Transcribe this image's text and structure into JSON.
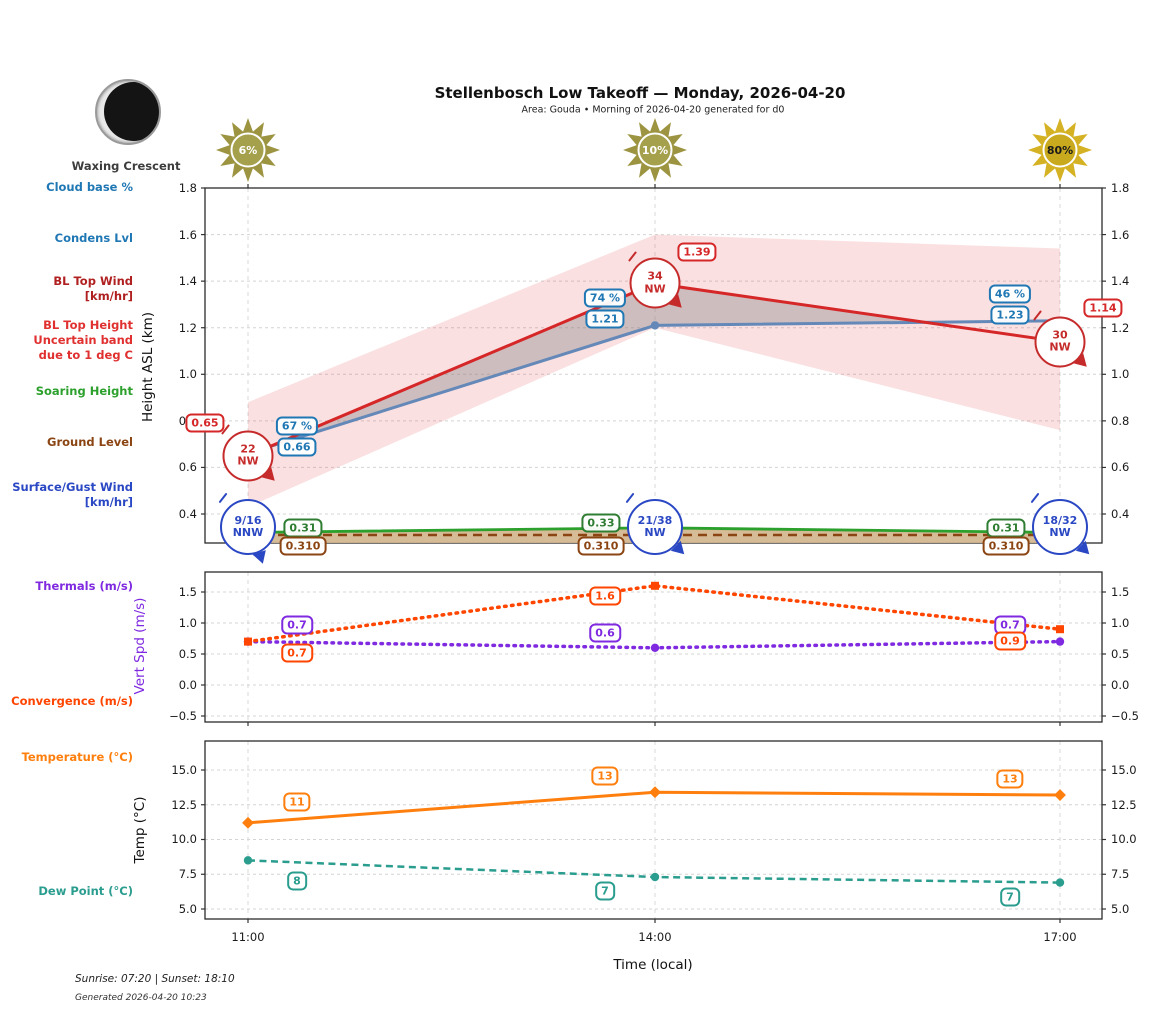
{
  "header": {
    "title": "Stellenbosch Low Takeoff — Monday, 2026-04-20",
    "subtitle": "Area: Gouda • Morning of 2026-04-20 generated for d0",
    "moon_phase": "Waxing Crescent"
  },
  "sunshine": [
    {
      "pct": "6%",
      "ray_color": "#9c9440",
      "disc_color": "#a5a04b",
      "text_color": "#ffffff"
    },
    {
      "pct": "10%",
      "ray_color": "#9c9440",
      "disc_color": "#a5a04b",
      "text_color": "#ffffff"
    },
    {
      "pct": "80%",
      "ray_color": "#d4b223",
      "disc_color": "#c9a91e",
      "text_color": "#1a1a1a"
    }
  ],
  "legends": {
    "cloud_base": "Cloud base %",
    "condens_lvl": "Condens Lvl",
    "bl_top_wind": [
      "BL Top Wind",
      "[km/hr]"
    ],
    "bl_top_height": [
      "BL Top Height",
      "Uncertain band",
      "due to 1 deg C"
    ],
    "soaring_height": "Soaring Height",
    "ground_level": "Ground Level",
    "surface_wind": [
      "Surface/Gust Wind",
      "[km/hr]"
    ],
    "thermals": "Thermals (m/s)",
    "convergence": "Convergence (m/s)",
    "temperature": "Temperature (°C)",
    "dew_point": "Dew Point (°C)"
  },
  "axes": {
    "time_label": "Time (local)"
  },
  "times": [
    "11:00",
    "14:00",
    "17:00"
  ],
  "footer": {
    "sun_times": "Sunrise: 07:20 | Sunset: 18:10",
    "generated": "Generated 2026-04-20 10:23"
  },
  "chart_data": [
    {
      "type": "line",
      "ylabel": "Height ASL (km)",
      "x": [
        "11:00",
        "14:00",
        "17:00"
      ],
      "ylim": [
        0.275,
        1.8
      ],
      "yticks": [
        "0.4",
        "0.6",
        "0.8",
        "1.0",
        "1.2",
        "1.4",
        "1.6",
        "1.8"
      ],
      "grid": true,
      "series": [
        {
          "name": "BL Top Height",
          "type": "line",
          "style": "solid",
          "color": "#d62728",
          "values": [
            0.65,
            1.39,
            1.14
          ],
          "point_labels": [
            "0.65",
            "1.39",
            "1.14"
          ]
        },
        {
          "name": "BL Top Height uncertain band due to 1 deg C",
          "type": "band",
          "color": "#e03c44",
          "upper": [
            0.88,
            1.6,
            1.54
          ],
          "lower": [
            0.43,
            1.2,
            0.76
          ]
        },
        {
          "name": "Condensation Level",
          "type": "line",
          "style": "solid",
          "color": "#6488b8",
          "values": [
            0.66,
            1.21,
            1.23
          ],
          "point_labels": [
            "0.66",
            "1.21",
            "1.23"
          ]
        },
        {
          "name": "Cloud base %",
          "type": "point-labels",
          "color": "#1f77b4",
          "point_labels": [
            "67 %",
            "74 %",
            "46 %"
          ]
        },
        {
          "name": "Soaring Height",
          "type": "line",
          "style": "solid",
          "color": "#2ca02c",
          "values": [
            0.31,
            0.33,
            0.31
          ],
          "point_labels": [
            "0.31",
            "0.33",
            "0.31"
          ]
        },
        {
          "name": "Ground Level",
          "type": "line",
          "style": "dashed",
          "color": "#8b4513",
          "values": [
            0.31,
            0.31,
            0.31
          ],
          "point_labels": [
            "0.310",
            "0.310",
            "0.310"
          ]
        },
        {
          "name": "BL Top Wind [km/hr]",
          "type": "wind-markers",
          "color": "#c62b2b",
          "points": [
            {
              "speed": "22",
              "dir": "NW"
            },
            {
              "speed": "34",
              "dir": "NW"
            },
            {
              "speed": "30",
              "dir": "NW"
            }
          ]
        },
        {
          "name": "Surface/Gust Wind [km/hr]",
          "type": "wind-markers",
          "color": "#2b48c4",
          "points": [
            {
              "speed": "9/16",
              "dir": "NNW"
            },
            {
              "speed": "21/38",
              "dir": "NW"
            },
            {
              "speed": "18/32",
              "dir": "NW"
            }
          ]
        }
      ]
    },
    {
      "type": "line",
      "ylabel": "Vert Spd (m/s)",
      "x": [
        "11:00",
        "14:00",
        "17:00"
      ],
      "ylim": [
        -0.6,
        1.82
      ],
      "yticks": [
        "−0.5",
        "0.0",
        "0.5",
        "1.0",
        "1.5"
      ],
      "grid": true,
      "series": [
        {
          "name": "Thermals",
          "type": "line",
          "style": "dotted",
          "marker": "circle",
          "color": "#7f2ae0",
          "values": [
            0.7,
            0.6,
            0.7
          ],
          "point_labels": [
            "0.7",
            "0.6",
            "0.7"
          ]
        },
        {
          "name": "Convergence",
          "type": "line",
          "style": "dotted",
          "marker": "square",
          "color": "#ff4500",
          "values": [
            0.7,
            1.6,
            0.9
          ],
          "point_labels": [
            "0.7",
            "1.6",
            "0.9"
          ]
        }
      ]
    },
    {
      "type": "line",
      "ylabel": "Temp (°C)",
      "x": [
        "11:00",
        "14:00",
        "17:00"
      ],
      "ylim": [
        4.3,
        17.1
      ],
      "yticks": [
        "5.0",
        "7.5",
        "10.0",
        "12.5",
        "15.0"
      ],
      "grid": true,
      "series": [
        {
          "name": "Temperature",
          "type": "line",
          "style": "solid",
          "marker": "diamond",
          "color": "#ff7f0e",
          "values": [
            11.2,
            13.4,
            13.2
          ],
          "point_labels": [
            "11",
            "13",
            "13"
          ]
        },
        {
          "name": "Dew Point",
          "type": "line",
          "style": "dashed",
          "marker": "circle",
          "color": "#2a9d8f",
          "values": [
            8.5,
            7.3,
            6.9
          ],
          "point_labels": [
            "8",
            "7",
            "7"
          ]
        }
      ]
    }
  ]
}
